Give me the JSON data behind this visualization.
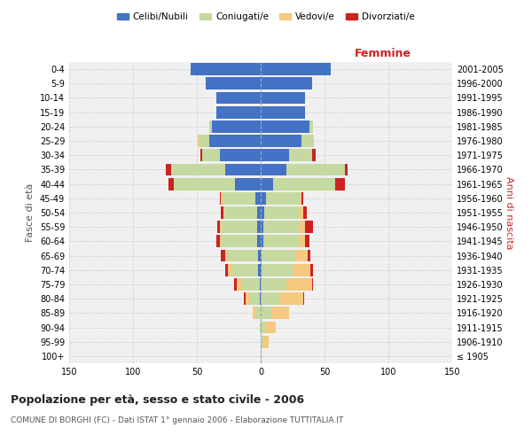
{
  "age_groups": [
    "100+",
    "95-99",
    "90-94",
    "85-89",
    "80-84",
    "75-79",
    "70-74",
    "65-69",
    "60-64",
    "55-59",
    "50-54",
    "45-49",
    "40-44",
    "35-39",
    "30-34",
    "25-29",
    "20-24",
    "15-19",
    "10-14",
    "5-9",
    "0-4"
  ],
  "birth_years": [
    "≤ 1905",
    "1906-1910",
    "1911-1915",
    "1916-1920",
    "1921-1925",
    "1926-1930",
    "1931-1935",
    "1936-1940",
    "1941-1945",
    "1946-1950",
    "1951-1955",
    "1956-1960",
    "1961-1965",
    "1966-1970",
    "1971-1975",
    "1976-1980",
    "1981-1985",
    "1986-1990",
    "1991-1995",
    "1996-2000",
    "2001-2005"
  ],
  "colors": {
    "celibi": "#4472c4",
    "coniugati": "#c5d9a0",
    "vedovi": "#f5c97f",
    "divorziati": "#cc2222"
  },
  "males": {
    "celibi": [
      0,
      0,
      0,
      0,
      1,
      1,
      2,
      2,
      3,
      3,
      3,
      4,
      20,
      28,
      32,
      40,
      38,
      35,
      35,
      43,
      55
    ],
    "coniugati": [
      0,
      0,
      1,
      4,
      8,
      14,
      20,
      24,
      28,
      28,
      26,
      26,
      48,
      42,
      14,
      8,
      2,
      0,
      0,
      0,
      0
    ],
    "vedovi": [
      0,
      0,
      0,
      2,
      3,
      4,
      4,
      2,
      1,
      1,
      0,
      1,
      0,
      0,
      0,
      1,
      0,
      0,
      0,
      0,
      0
    ],
    "divorziati": [
      0,
      0,
      0,
      0,
      1,
      2,
      2,
      3,
      3,
      2,
      2,
      1,
      4,
      4,
      1,
      0,
      0,
      0,
      0,
      0,
      0
    ]
  },
  "females": {
    "celibi": [
      0,
      0,
      0,
      0,
      0,
      0,
      1,
      1,
      2,
      2,
      3,
      4,
      10,
      20,
      22,
      32,
      38,
      35,
      35,
      40,
      55
    ],
    "coniugati": [
      0,
      2,
      4,
      8,
      15,
      20,
      24,
      26,
      28,
      28,
      27,
      27,
      48,
      46,
      18,
      10,
      3,
      0,
      0,
      0,
      0
    ],
    "vedovi": [
      1,
      4,
      8,
      14,
      18,
      20,
      14,
      10,
      5,
      5,
      3,
      1,
      0,
      0,
      0,
      0,
      0,
      0,
      0,
      0,
      0
    ],
    "divorziati": [
      0,
      0,
      0,
      0,
      1,
      1,
      2,
      2,
      3,
      6,
      3,
      1,
      8,
      2,
      3,
      0,
      0,
      0,
      0,
      0,
      0
    ]
  },
  "title": "Popolazione per età, sesso e stato civile - 2006",
  "subtitle": "COMUNE DI BORGHI (FC) - Dati ISTAT 1° gennaio 2006 - Elaborazione TUTTITALIA.IT",
  "xlabel_right": "Femmine",
  "ylabel_left": "Fasce di età",
  "ylabel_right": "Anni di nascita",
  "legend_labels": [
    "Celibi/Nubili",
    "Coniugati/e",
    "Vedovi/e",
    "Divorziati/e"
  ],
  "xlim": 150,
  "background_color": "#ffffff",
  "plot_bg": "#f0f0f0",
  "grid_color": "#cccccc"
}
